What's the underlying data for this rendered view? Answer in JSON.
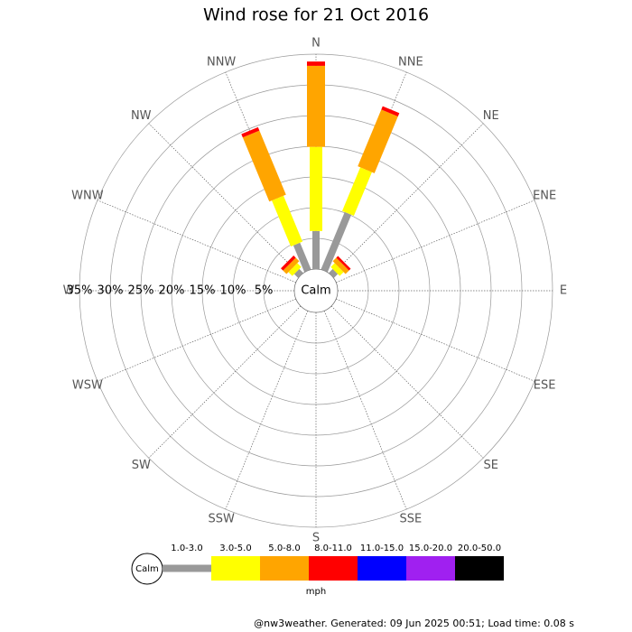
{
  "chart_data": {
    "type": "wind_rose",
    "title": "Wind rose for 21 Oct 2016",
    "directions": [
      "N",
      "NNE",
      "NE",
      "ENE",
      "E",
      "ESE",
      "SE",
      "SSE",
      "S",
      "SSW",
      "SW",
      "WSW",
      "W",
      "WNW",
      "NW",
      "NNW"
    ],
    "series": [
      {
        "name": "1.0-3.0",
        "color": "#999999",
        "values": [
          6.2,
          10.1,
          0.9,
          0,
          0,
          0,
          0,
          0,
          0,
          0,
          0,
          0,
          0,
          0,
          0.9,
          4.7
        ]
      },
      {
        "name": "3.0-5.0",
        "color": "#ffff00",
        "values": [
          13.7,
          7.7,
          0.9,
          0,
          0,
          0,
          0,
          0,
          0,
          0,
          0,
          0,
          0,
          0,
          0.9,
          8.1
        ]
      },
      {
        "name": "5.0-8.0",
        "color": "#ffa500",
        "values": [
          13.2,
          10.0,
          0.8,
          0,
          0,
          0,
          0,
          0,
          0,
          0,
          0,
          0,
          0,
          0,
          0.8,
          11.3
        ]
      },
      {
        "name": "8.0-11.0",
        "color": "#ff0000",
        "values": [
          0.7,
          0.6,
          0.4,
          0,
          0,
          0,
          0,
          0,
          0,
          0,
          0,
          0,
          0,
          0,
          0.5,
          0.6
        ]
      },
      {
        "name": "11.0-15.0",
        "color": "#0000ff",
        "values": [
          0,
          0,
          0,
          0,
          0,
          0,
          0,
          0,
          0,
          0,
          0,
          0,
          0,
          0,
          0,
          0
        ]
      },
      {
        "name": "15.0-20.0",
        "color": "#a020f0",
        "values": [
          0,
          0,
          0,
          0,
          0,
          0,
          0,
          0,
          0,
          0,
          0,
          0,
          0,
          0,
          0,
          0
        ]
      },
      {
        "name": "20.0-50.0",
        "color": "#000000",
        "values": [
          0,
          0,
          0,
          0,
          0,
          0,
          0,
          0,
          0,
          0,
          0,
          0,
          0,
          0,
          0,
          0
        ]
      }
    ],
    "rlim": [
      0,
      35
    ],
    "rticks": [
      {
        "value": 5,
        "label": "5%"
      },
      {
        "value": 10,
        "label": "10%"
      },
      {
        "value": 15,
        "label": "15%"
      },
      {
        "value": 20,
        "label": "20%"
      },
      {
        "value": 25,
        "label": "25%"
      },
      {
        "value": 30,
        "label": "30%"
      },
      {
        "value": 35,
        "label": "35%"
      }
    ],
    "calm_label": "Calm",
    "units": "mph",
    "footer": "@nw3weather. Generated: 09 Jun 2025 00:51; Load time: 0.08 s"
  }
}
